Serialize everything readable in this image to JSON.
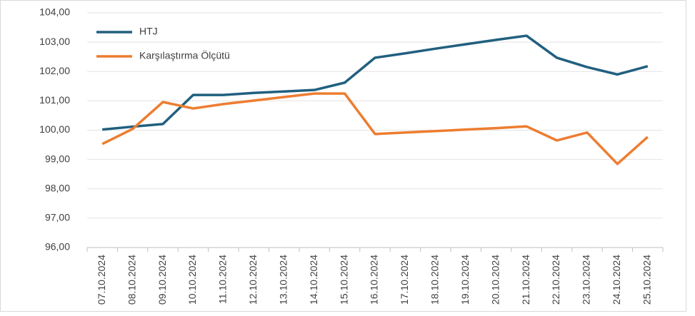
{
  "chart_data": {
    "type": "line",
    "categories": [
      "07.10.2024",
      "08.10.2024",
      "09.10.2024",
      "10.10.2024",
      "11.10.2024",
      "12.10.2024",
      "13.10.2024",
      "14.10.2024",
      "15.10.2024",
      "16.10.2024",
      "17.10.2024",
      "18.10.2024",
      "19.10.2024",
      "20.10.2024",
      "21.10.2024",
      "22.10.2024",
      "23.10.2024",
      "24.10.2024",
      "25.10.2024"
    ],
    "series": [
      {
        "name": "HTJ",
        "color": "#215f7f",
        "values": [
          100.02,
          100.12,
          100.21,
          101.2,
          101.2,
          101.27,
          101.32,
          101.37,
          101.62,
          102.47,
          102.62,
          102.78,
          102.93,
          103.08,
          103.22,
          102.47,
          102.15,
          101.9,
          102.18
        ]
      },
      {
        "name": "Karşılaştırma Ölçütü",
        "color": "#ed7d31",
        "values": [
          99.53,
          100.04,
          100.96,
          100.74,
          100.89,
          101.01,
          101.13,
          101.25,
          101.25,
          99.87,
          99.92,
          99.97,
          100.02,
          100.07,
          100.13,
          99.65,
          99.92,
          98.85,
          99.77
        ]
      }
    ],
    "ylim": [
      96,
      104
    ],
    "yticks": [
      {
        "value": 96,
        "label": "96,00"
      },
      {
        "value": 97,
        "label": "97,00"
      },
      {
        "value": 98,
        "label": "98,00"
      },
      {
        "value": 99,
        "label": "99,00"
      },
      {
        "value": 100,
        "label": "100,00"
      },
      {
        "value": 101,
        "label": "101,00"
      },
      {
        "value": 102,
        "label": "102,00"
      },
      {
        "value": 103,
        "label": "103,00"
      },
      {
        "value": 104,
        "label": "104,00"
      }
    ],
    "grid": true,
    "legend": "top-left"
  }
}
